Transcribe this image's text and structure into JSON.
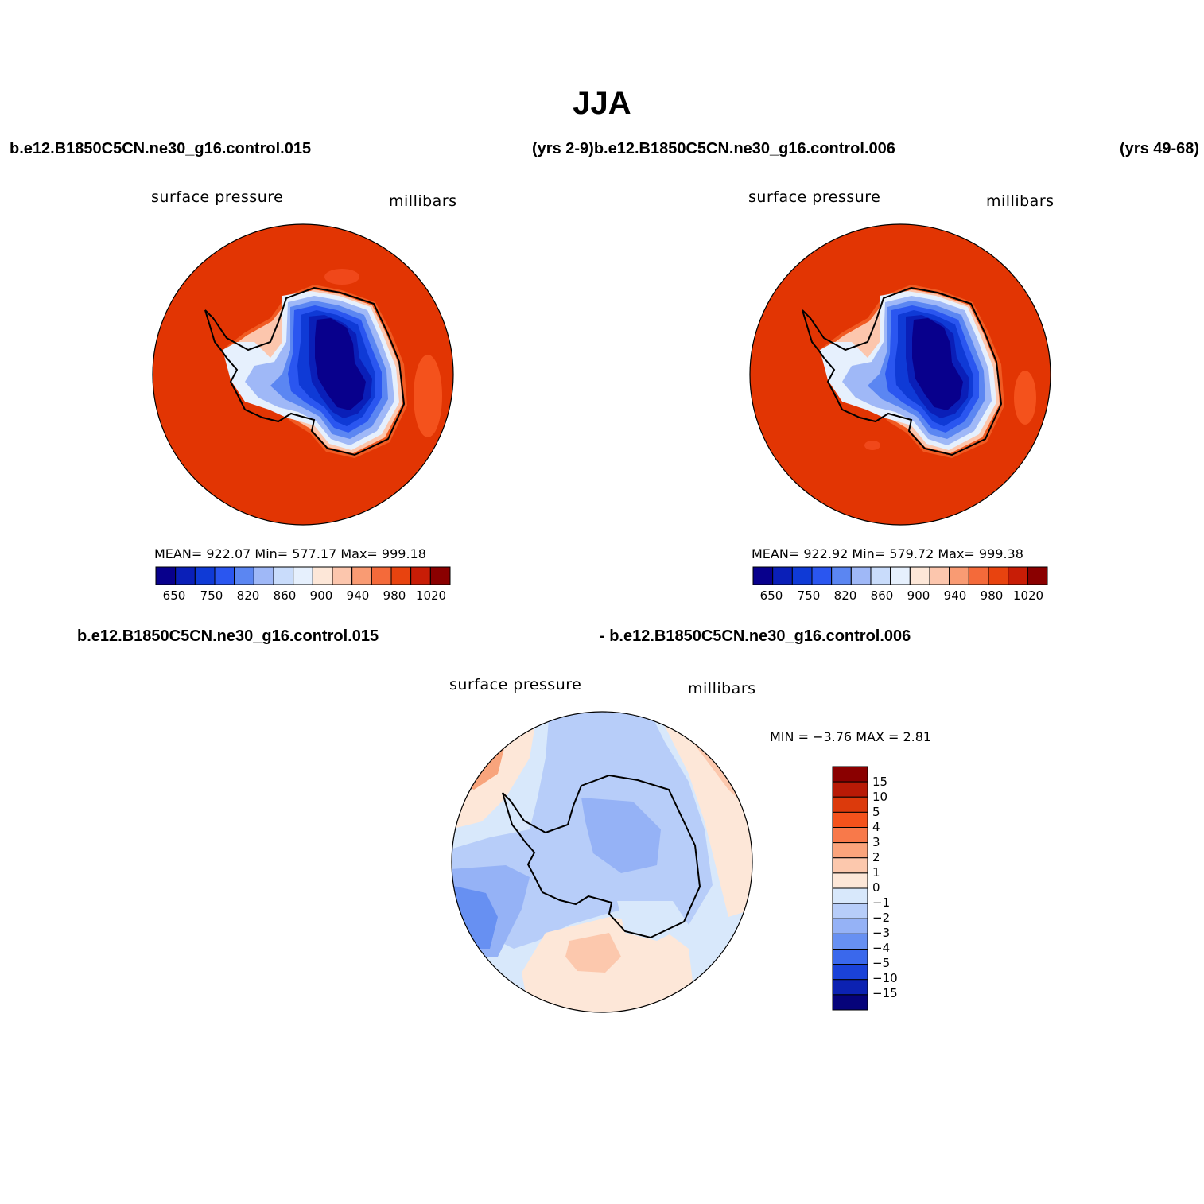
{
  "title": "JJA",
  "top_left_case": "b.e12.B1850C5CN.ne30_g16.control.015",
  "top_mid_case": "(yrs 2-9)b.e12.B1850C5CN.ne30_g16.control.006",
  "top_right_yrs": "(yrs 49-68)",
  "panel1": {
    "field": "surface pressure",
    "units": "millibars",
    "stats": "MEAN=  922.07    Min=  577.17    Max=  999.18",
    "colorbar_labels": [
      "650",
      "750",
      "820",
      "860",
      "900",
      "940",
      "980",
      "1020"
    ],
    "colorbar_colors": [
      "#08008c",
      "#0a1fb8",
      "#0f3ad6",
      "#2a56f0",
      "#5b86f2",
      "#9fb8f7",
      "#c9dcfb",
      "#e6f0fd",
      "#fde7d8",
      "#fcc6ad",
      "#f99b73",
      "#f46a3a",
      "#e8430f",
      "#c81d06",
      "#8a0000"
    ]
  },
  "panel2": {
    "field": "surface pressure",
    "units": "millibars",
    "stats": "MEAN=  922.92    Min=  579.72    Max=  999.38",
    "colorbar_labels": [
      "650",
      "750",
      "820",
      "860",
      "900",
      "940",
      "980",
      "1020"
    ]
  },
  "diff": {
    "left_case": "b.e12.B1850C5CN.ne30_g16.control.015",
    "right_case": "- b.e12.B1850C5CN.ne30_g16.control.006",
    "field": "surface pressure",
    "units": "millibars",
    "minmax": "MIN =   −3.76  MAX =     2.81",
    "colorbar_labels": [
      "15",
      "10",
      "5",
      "4",
      "3",
      "2",
      "1",
      "0",
      "−1",
      "−2",
      "−3",
      "−4",
      "−5",
      "−10",
      "−15"
    ],
    "colorbar_colors": [
      "#8a0000",
      "#b81a06",
      "#dc3a0c",
      "#f4521c",
      "#f8794a",
      "#fba47c",
      "#fcc8ad",
      "#fde7d8",
      "#d8e8fb",
      "#b7cdf9",
      "#95b2f6",
      "#6790f2",
      "#3a68ec",
      "#1a42d8",
      "#0c22b2",
      "#06037a"
    ]
  }
}
